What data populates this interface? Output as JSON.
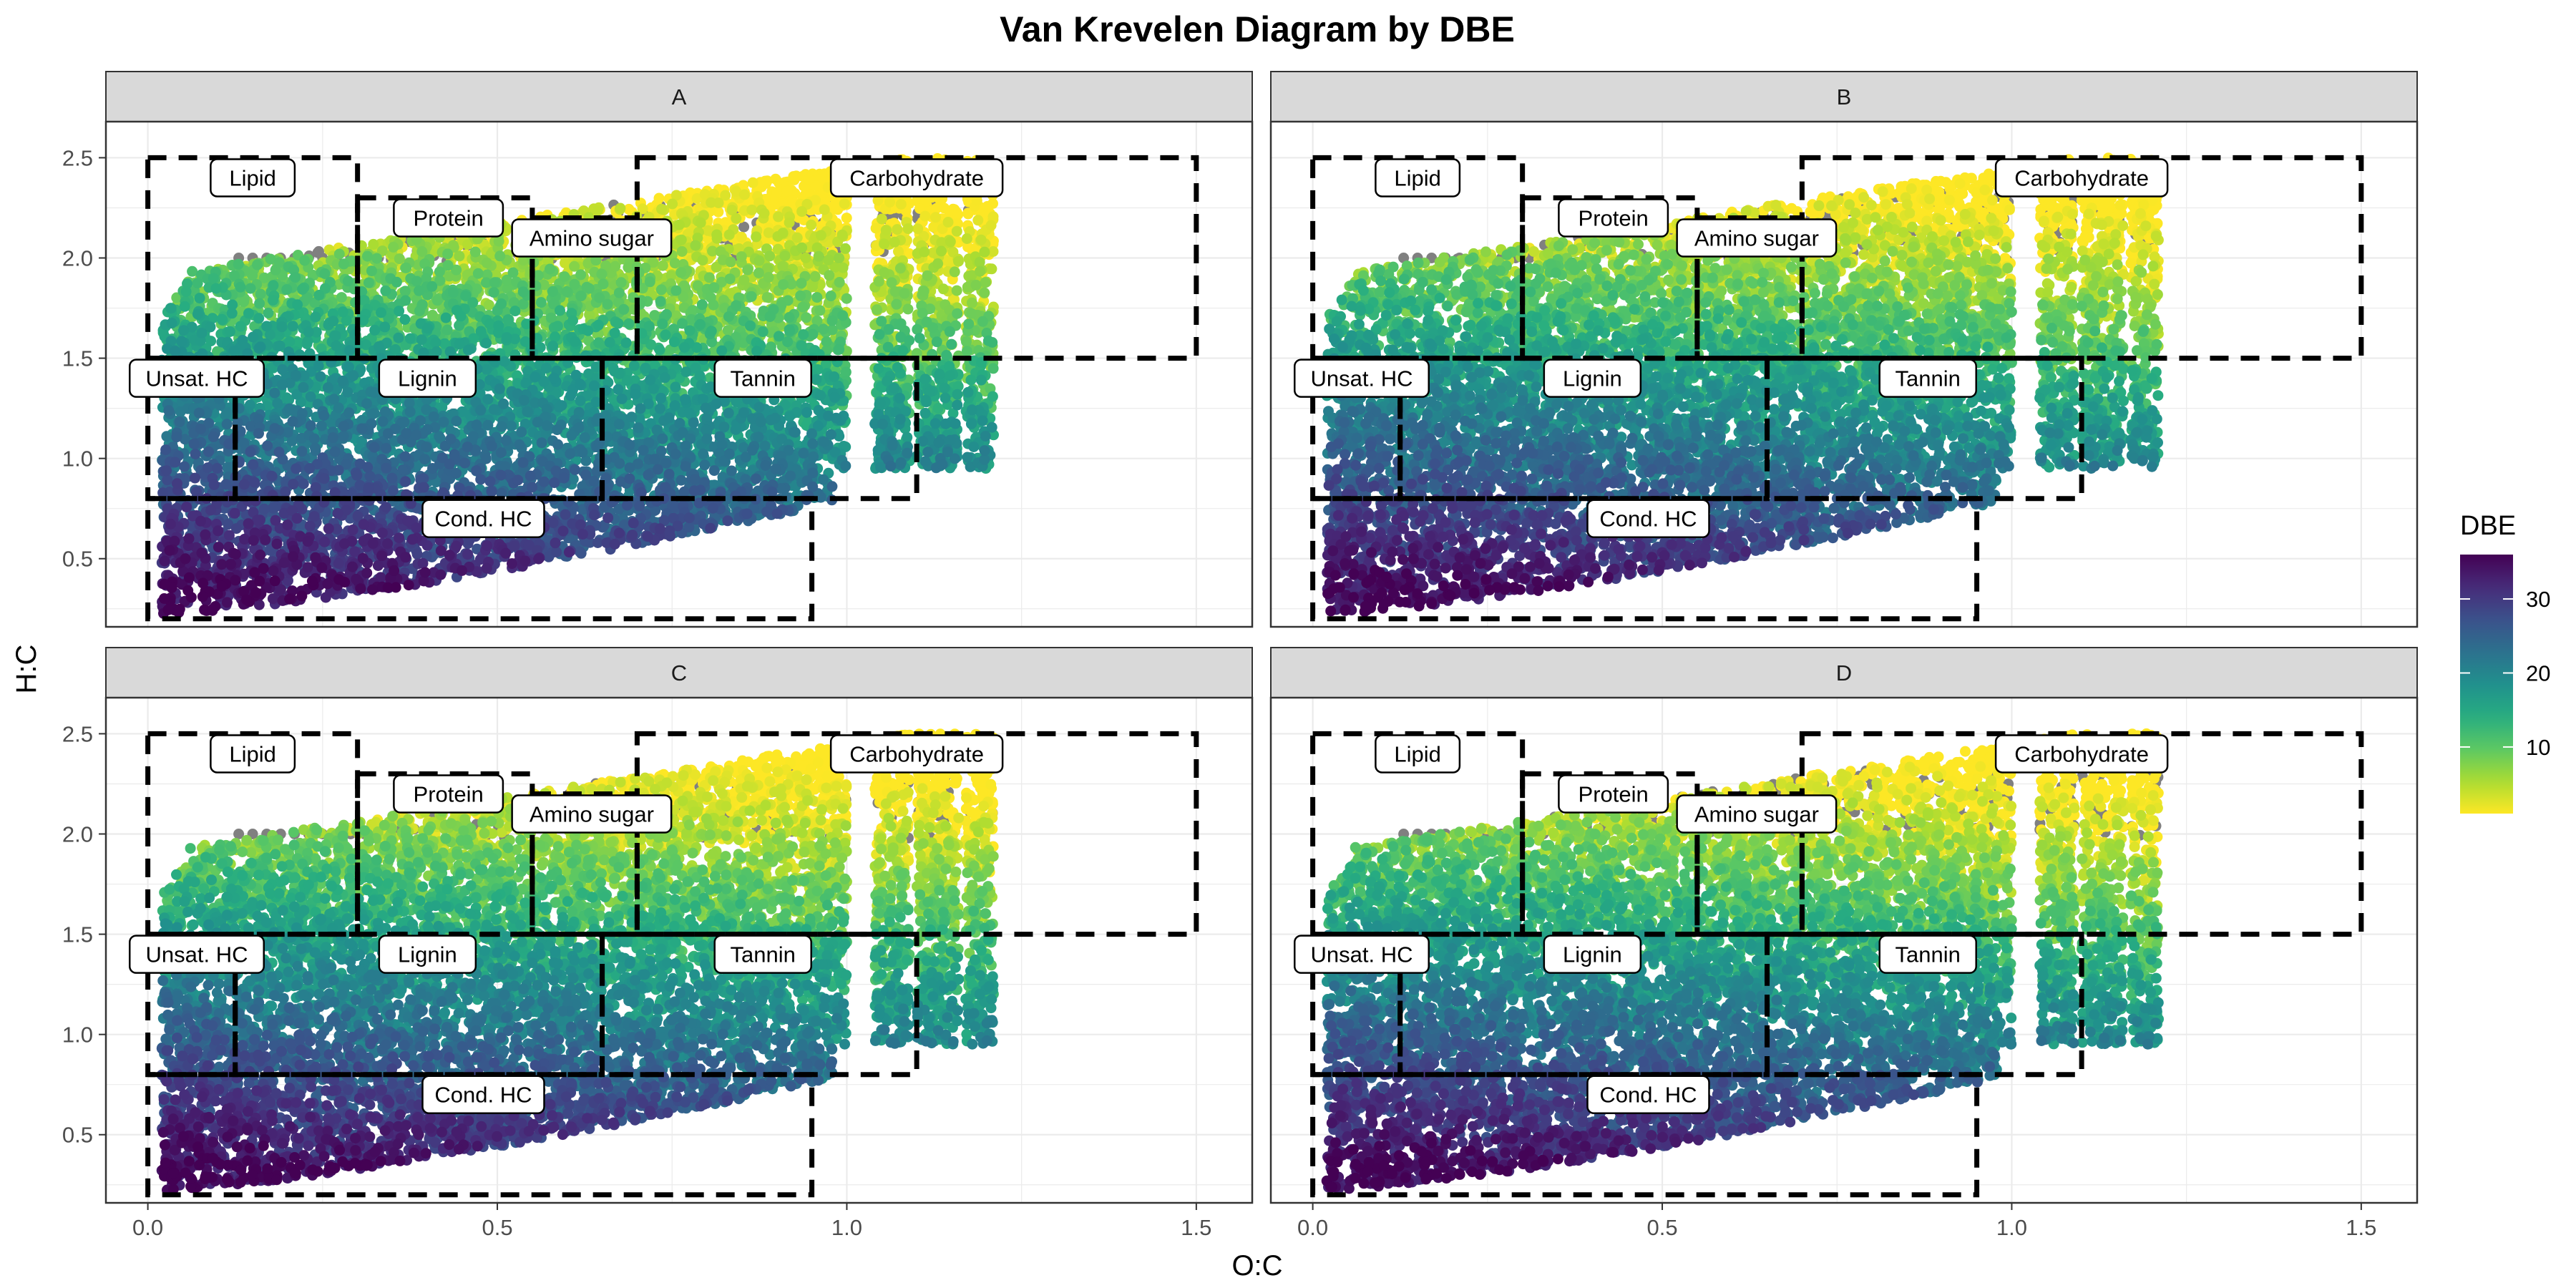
{
  "chart_data": {
    "type": "scatter",
    "title": "Van Krevelen Diagram by DBE",
    "xlabel": "O:C",
    "ylabel": "H:C",
    "xlim": [
      -0.06,
      1.58
    ],
    "ylim": [
      0.16,
      2.68
    ],
    "x_ticks": [
      0,
      0.5,
      1,
      1.5
    ],
    "x_tick_labels": [
      "0.0",
      "0.5",
      "1.0",
      "1.5"
    ],
    "y_ticks": [
      0.5,
      1,
      1.5,
      2,
      2.5
    ],
    "y_tick_labels": [
      "0.5",
      "1.0",
      "1.5",
      "2.0",
      "2.5"
    ],
    "grid": true,
    "facets": [
      "A",
      "B",
      "C",
      "D"
    ],
    "color_variable": "DBE",
    "colorscale": "viridis (reversed)",
    "color_range": [
      1,
      36
    ],
    "colorbar_ticks": [
      10,
      20,
      30
    ],
    "colorbar_tick_labels": [
      "10",
      "20",
      "30"
    ],
    "na_color": "#808080",
    "legend_position": "right",
    "regions": [
      {
        "name": "Lipid",
        "o_c": [
          0,
          0.3
        ],
        "h_c": [
          1.5,
          2.5
        ]
      },
      {
        "name": "Protein",
        "o_c": [
          0.3,
          0.55
        ],
        "h_c": [
          1.5,
          2.3
        ]
      },
      {
        "name": "Amino sugar",
        "o_c": [
          0.55,
          0.7
        ],
        "h_c": [
          1.5,
          2.2
        ]
      },
      {
        "name": "Carbohydrate",
        "o_c": [
          0.7,
          1.5
        ],
        "h_c": [
          1.5,
          2.5
        ]
      },
      {
        "name": "Unsat. HC",
        "o_c": [
          0,
          0.125
        ],
        "h_c": [
          0.8,
          1.5
        ]
      },
      {
        "name": "Lignin",
        "o_c": [
          0.125,
          0.65
        ],
        "h_c": [
          0.8,
          1.5
        ]
      },
      {
        "name": "Tannin",
        "o_c": [
          0.65,
          1.1
        ],
        "h_c": [
          0.8,
          1.5
        ]
      },
      {
        "name": "Cond. HC",
        "o_c": [
          0,
          0.95
        ],
        "h_c": [
          0.2,
          0.8
        ]
      }
    ],
    "region_label_positions": [
      {
        "name": "Lipid",
        "x": 0.15,
        "y": 2.4
      },
      {
        "name": "Protein",
        "x": 0.43,
        "y": 2.2
      },
      {
        "name": "Amino sugar",
        "x": 0.635,
        "y": 2.1
      },
      {
        "name": "Carbohydrate",
        "x": 1.1,
        "y": 2.4
      },
      {
        "name": "Unsat. HC",
        "x": 0.07,
        "y": 1.4
      },
      {
        "name": "Lignin",
        "x": 0.4,
        "y": 1.4
      },
      {
        "name": "Tannin",
        "x": 0.88,
        "y": 1.4
      },
      {
        "name": "Cond. HC",
        "x": 0.48,
        "y": 0.7
      }
    ],
    "point_cloud": {
      "approx_points_per_facet": 9000,
      "o_c_range": [
        0.02,
        1.21
      ],
      "h_c_range": [
        0.2,
        2.5
      ],
      "high_dbe_region": "low H:C, low O:C (dark purple, DBE ~30-36)",
      "low_dbe_region": "high H:C (yellow, DBE ~1-5)",
      "na_points": "grey points along H:C ≈ 2.0-2.3 ridge"
    }
  }
}
